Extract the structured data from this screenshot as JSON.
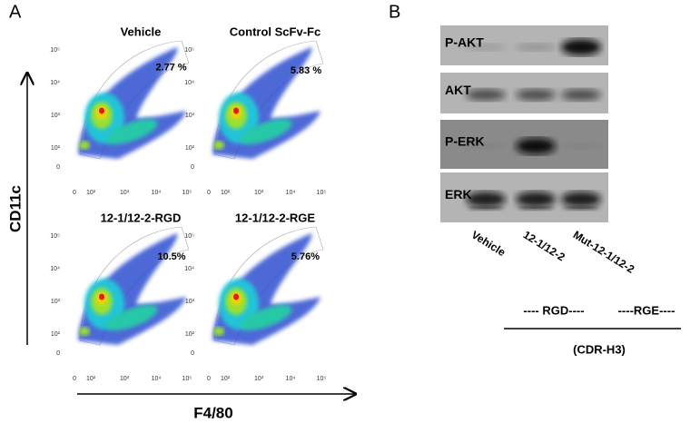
{
  "panel_a": {
    "label": "A",
    "y_axis_label": "CD11c",
    "x_axis_label": "F4/80",
    "x_ticks": [
      "0",
      "10²",
      "10³",
      "10⁴",
      "10⁵"
    ],
    "y_ticks": [
      "10⁵",
      "10⁴",
      "10³",
      "10²",
      "0"
    ],
    "plots": [
      {
        "title": "Vehicle",
        "percent": "2.77 %"
      },
      {
        "title": "Control ScFv-Fc",
        "percent": "5.83 %"
      },
      {
        "title": "12-1/12-2-RGD",
        "percent": "10.5%"
      },
      {
        "title": "12-1/12-2-RGE",
        "percent": "5.76%"
      }
    ]
  },
  "panel_b": {
    "label": "B",
    "blots": [
      "P-AKT",
      "AKT",
      "P-ERK",
      "ERK"
    ],
    "lanes": [
      "Vehicle",
      "12-1/12-2",
      "Mut-12-1/12-2"
    ],
    "motifs": [
      "---- RGD----",
      "----RGE----"
    ],
    "bracket_label": "(CDR-H3)"
  }
}
